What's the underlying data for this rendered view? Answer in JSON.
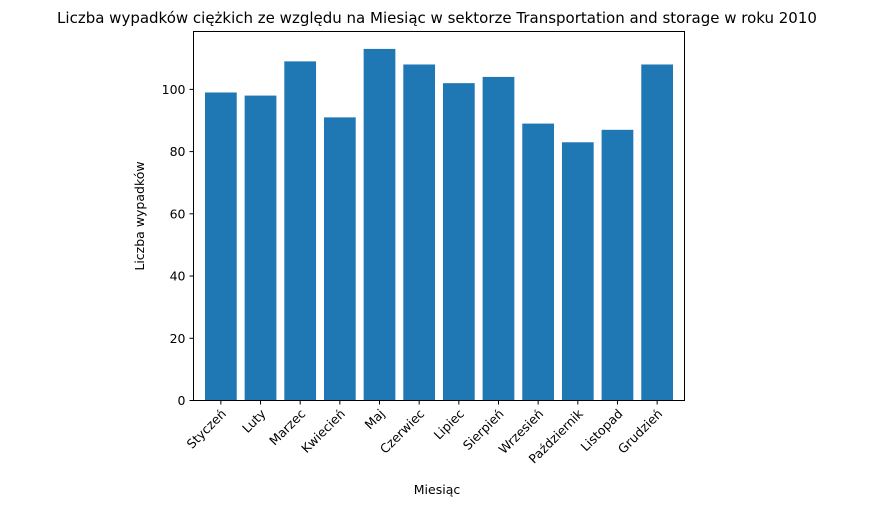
{
  "chart_data": {
    "type": "bar",
    "title": "Liczba wypadków ciężkich ze względu na Miesiąc w sektorze Transportation and storage  w roku 2010",
    "xlabel": "Miesiąc",
    "ylabel": "Liczba wypadków",
    "categories": [
      "Styczeń",
      "Luty",
      "Marzec",
      "Kwiecień",
      "Maj",
      "Czerwiec",
      "Lipiec",
      "Sierpień",
      "Wrzesień",
      "Październik",
      "Listopad",
      "Grudzień"
    ],
    "values": [
      99,
      98,
      109,
      91,
      113,
      108,
      102,
      104,
      89,
      83,
      87,
      108
    ],
    "ylim": [
      0,
      118.6
    ],
    "yticks": [
      0,
      20,
      40,
      60,
      80,
      100
    ],
    "grid": false,
    "bar_color": "#1f77b4"
  }
}
